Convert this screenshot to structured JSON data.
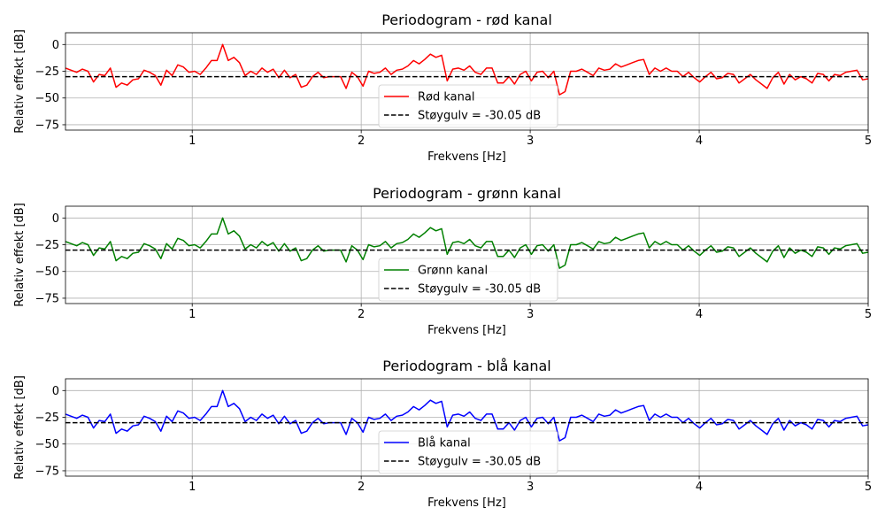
{
  "chart_data": [
    {
      "type": "line",
      "title": "Periodogram - rød kanal",
      "xlabel": "Frekvens [Hz]",
      "ylabel": "Relativ effekt [dB]",
      "xlim": [
        0.25,
        5.0
      ],
      "ylim": [
        -80,
        11
      ],
      "xticks": [
        1,
        2,
        3,
        4,
        5
      ],
      "yticks": [
        0,
        -25,
        -50,
        -75
      ],
      "grid": true,
      "legend_position": "lower-center",
      "series": [
        {
          "name": "Rød kanal",
          "color": "#ff0000",
          "style": "solid",
          "values": [
            -22,
            -24,
            -26,
            -23,
            -25,
            -35,
            -28,
            -29,
            -22,
            -40,
            -36,
            -38,
            -33,
            -32,
            -24,
            -26,
            -29,
            -38,
            -24,
            -29,
            -19,
            -21,
            -26,
            -25,
            -28,
            -22,
            -15,
            -15,
            0,
            -15,
            -12,
            -17,
            -29,
            -25,
            -28,
            -22,
            -26,
            -23,
            -31,
            -24,
            -31,
            -28,
            -40,
            -38,
            -30,
            -26,
            -31,
            -30,
            -30,
            -30,
            -41,
            -26,
            -30,
            -39,
            -25,
            -27,
            -26,
            -22,
            -28,
            -24,
            -23,
            -20,
            -15,
            -18,
            -14,
            -9,
            -12,
            -10,
            -34,
            -23,
            -22,
            -24,
            -20,
            -26,
            -28,
            -22,
            -22,
            -36,
            -36,
            -30,
            -37,
            -28,
            -25,
            -34,
            -26,
            -25,
            -31,
            -25,
            -47,
            -44,
            -25,
            -25,
            -23,
            -26,
            -29,
            -22,
            -24,
            -23,
            -18,
            -21,
            -19,
            -17,
            -15,
            -14,
            -28,
            -22,
            -25,
            -22,
            -25,
            -25,
            -30,
            -26,
            -31,
            -35,
            -30,
            -26,
            -32,
            -31,
            -27,
            -28,
            -36,
            -32,
            -28,
            -33,
            -37,
            -41,
            -31,
            -26,
            -37,
            -28,
            -33,
            -30,
            -32,
            -36,
            -27,
            -28,
            -34,
            -28,
            -29,
            -26,
            -25,
            -24,
            -33,
            -32
          ]
        },
        {
          "name": "Støygulv = -30.05 dB",
          "color": "#000000",
          "style": "dashed",
          "value": -30.05
        }
      ]
    },
    {
      "type": "line",
      "title": "Periodogram - grønn kanal",
      "xlabel": "Frekvens [Hz]",
      "ylabel": "Relativ effekt [dB]",
      "xlim": [
        0.25,
        5.0
      ],
      "ylim": [
        -80,
        11
      ],
      "xticks": [
        1,
        2,
        3,
        4,
        5
      ],
      "yticks": [
        0,
        -25,
        -50,
        -75
      ],
      "grid": true,
      "legend_position": "lower-center",
      "series": [
        {
          "name": "Grønn kanal",
          "color": "#008000",
          "style": "solid",
          "values": [
            -22,
            -24,
            -26,
            -23,
            -25,
            -35,
            -28,
            -29,
            -22,
            -40,
            -36,
            -38,
            -33,
            -32,
            -24,
            -26,
            -29,
            -38,
            -24,
            -29,
            -19,
            -21,
            -26,
            -25,
            -28,
            -22,
            -15,
            -15,
            0,
            -15,
            -12,
            -17,
            -29,
            -25,
            -28,
            -22,
            -26,
            -23,
            -31,
            -24,
            -31,
            -28,
            -40,
            -38,
            -30,
            -26,
            -31,
            -30,
            -30,
            -30,
            -41,
            -26,
            -30,
            -39,
            -25,
            -27,
            -26,
            -22,
            -28,
            -24,
            -23,
            -20,
            -15,
            -18,
            -14,
            -9,
            -12,
            -10,
            -34,
            -23,
            -22,
            -24,
            -20,
            -26,
            -28,
            -22,
            -22,
            -36,
            -36,
            -30,
            -37,
            -28,
            -25,
            -34,
            -26,
            -25,
            -31,
            -25,
            -47,
            -44,
            -25,
            -25,
            -23,
            -26,
            -29,
            -22,
            -24,
            -23,
            -18,
            -21,
            -19,
            -17,
            -15,
            -14,
            -28,
            -22,
            -25,
            -22,
            -25,
            -25,
            -30,
            -26,
            -31,
            -35,
            -30,
            -26,
            -32,
            -31,
            -27,
            -28,
            -36,
            -32,
            -28,
            -33,
            -37,
            -41,
            -31,
            -26,
            -37,
            -28,
            -33,
            -30,
            -32,
            -36,
            -27,
            -28,
            -34,
            -28,
            -29,
            -26,
            -25,
            -24,
            -33,
            -32
          ]
        },
        {
          "name": "Støygulv = -30.05 dB",
          "color": "#000000",
          "style": "dashed",
          "value": -30.05
        }
      ]
    },
    {
      "type": "line",
      "title": "Periodogram - blå kanal",
      "xlabel": "Frekvens [Hz]",
      "ylabel": "Relativ effekt [dB]",
      "xlim": [
        0.25,
        5.0
      ],
      "ylim": [
        -80,
        11
      ],
      "xticks": [
        1,
        2,
        3,
        4,
        5
      ],
      "yticks": [
        0,
        -25,
        -50,
        -75
      ],
      "grid": true,
      "legend_position": "lower-center",
      "series": [
        {
          "name": "Blå kanal",
          "color": "#0000ff",
          "style": "solid",
          "values": [
            -22,
            -24,
            -26,
            -23,
            -25,
            -35,
            -28,
            -29,
            -22,
            -40,
            -36,
            -38,
            -33,
            -32,
            -24,
            -26,
            -29,
            -38,
            -24,
            -29,
            -19,
            -21,
            -26,
            -25,
            -28,
            -22,
            -15,
            -15,
            0,
            -15,
            -12,
            -17,
            -29,
            -25,
            -28,
            -22,
            -26,
            -23,
            -31,
            -24,
            -31,
            -28,
            -40,
            -38,
            -30,
            -26,
            -31,
            -30,
            -30,
            -30,
            -41,
            -26,
            -30,
            -39,
            -25,
            -27,
            -26,
            -22,
            -28,
            -24,
            -23,
            -20,
            -15,
            -18,
            -14,
            -9,
            -12,
            -10,
            -34,
            -23,
            -22,
            -24,
            -20,
            -26,
            -28,
            -22,
            -22,
            -36,
            -36,
            -30,
            -37,
            -28,
            -25,
            -34,
            -26,
            -25,
            -31,
            -25,
            -47,
            -44,
            -25,
            -25,
            -23,
            -26,
            -29,
            -22,
            -24,
            -23,
            -18,
            -21,
            -19,
            -17,
            -15,
            -14,
            -28,
            -22,
            -25,
            -22,
            -25,
            -25,
            -30,
            -26,
            -31,
            -35,
            -30,
            -26,
            -32,
            -31,
            -27,
            -28,
            -36,
            -32,
            -28,
            -33,
            -37,
            -41,
            -31,
            -26,
            -37,
            -28,
            -33,
            -30,
            -32,
            -36,
            -27,
            -28,
            -34,
            -28,
            -29,
            -26,
            -25,
            -24,
            -33,
            -32
          ]
        },
        {
          "name": "Støygulv = -30.05 dB",
          "color": "#000000",
          "style": "dashed",
          "value": -30.05
        }
      ]
    }
  ]
}
